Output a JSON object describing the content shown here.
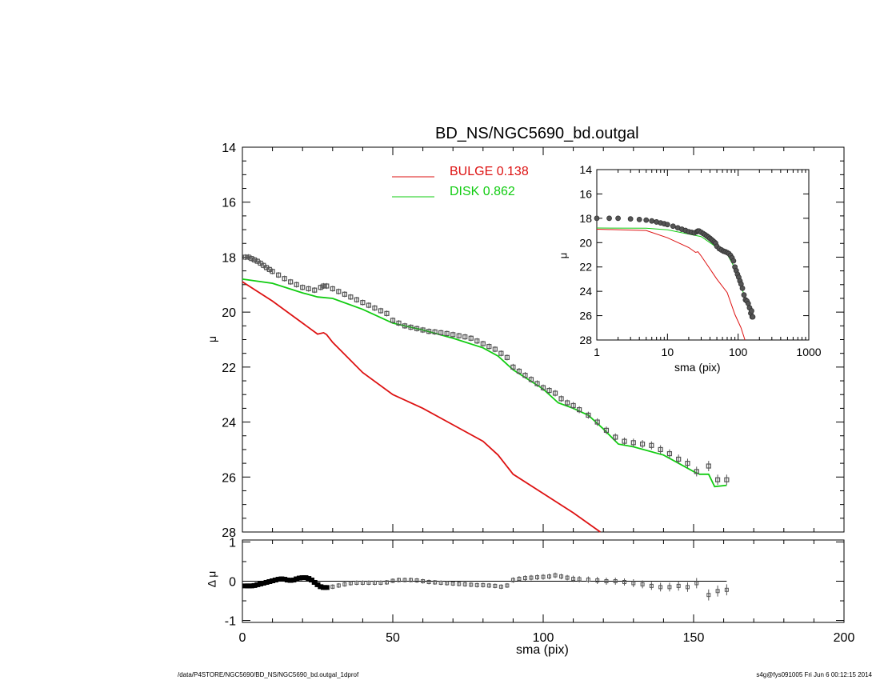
{
  "title": "BD_NS/NGC5690_bd.outgal",
  "footer_left": "/data/P4STORE/NGC5690/BD_NS/NGC5690_bd.outgal_1dprof",
  "footer_right": "s4g@fys091005  Fri Jun  6 00:12:15 2014",
  "colors": {
    "bulge": "#dd1111",
    "disk": "#11cc11",
    "data": "#555555",
    "axis": "#000000"
  },
  "legend": [
    {
      "label": "BULGE  0.138",
      "color": "#dd1111"
    },
    {
      "label": "DISK  0.862",
      "color": "#11cc11"
    }
  ],
  "chart_data": [
    {
      "id": "main",
      "type": "line",
      "xlabel": "",
      "ylabel": "μ",
      "xlim": [
        0,
        200
      ],
      "ylim": [
        28,
        14
      ],
      "xticks": [
        0,
        50,
        100,
        150,
        200
      ],
      "yticks": [
        14,
        16,
        18,
        20,
        22,
        24,
        26,
        28
      ],
      "series": [
        {
          "name": "BULGE",
          "color": "#dd1111",
          "x": [
            0,
            10,
            20,
            25,
            27,
            28,
            30,
            40,
            50,
            60,
            70,
            80,
            85,
            90,
            100,
            110,
            119
          ],
          "y": [
            18.9,
            19.6,
            20.4,
            20.8,
            20.75,
            20.82,
            21.1,
            22.2,
            23.0,
            23.5,
            24.1,
            24.7,
            25.2,
            25.9,
            26.6,
            27.3,
            28.0
          ]
        },
        {
          "name": "DISK",
          "color": "#11cc11",
          "x": [
            0,
            10,
            20,
            25,
            30,
            40,
            50,
            60,
            70,
            80,
            85,
            90,
            100,
            105,
            110,
            115,
            120,
            125,
            130,
            140,
            145,
            150,
            152,
            155,
            157,
            161
          ],
          "y": [
            18.8,
            18.95,
            19.3,
            19.45,
            19.5,
            19.9,
            20.4,
            20.65,
            20.95,
            21.3,
            21.6,
            22.1,
            22.8,
            23.3,
            23.5,
            23.75,
            24.25,
            24.8,
            24.9,
            25.2,
            25.5,
            25.8,
            25.9,
            25.9,
            26.35,
            26.3
          ]
        }
      ],
      "points": {
        "name": "data",
        "color": "#555555",
        "x": [
          1,
          2,
          3,
          4,
          5,
          6,
          7,
          8,
          9,
          10,
          12,
          14,
          16,
          18,
          20,
          22,
          24,
          26,
          27,
          28,
          30,
          32,
          34,
          36,
          38,
          40,
          42,
          44,
          46,
          48,
          50,
          52,
          54,
          56,
          58,
          60,
          62,
          64,
          66,
          68,
          70,
          72,
          74,
          76,
          78,
          80,
          82,
          84,
          86,
          88,
          90,
          92,
          94,
          96,
          98,
          100,
          102,
          104,
          106,
          108,
          110,
          112,
          115,
          118,
          121,
          124,
          127,
          130,
          133,
          136,
          139,
          142,
          145,
          148,
          151,
          155,
          158,
          161
        ],
        "y": [
          18.0,
          18.0,
          18.05,
          18.1,
          18.15,
          18.22,
          18.3,
          18.38,
          18.45,
          18.52,
          18.65,
          18.78,
          18.9,
          19.0,
          19.1,
          19.15,
          19.2,
          19.1,
          19.05,
          19.05,
          19.15,
          19.25,
          19.35,
          19.45,
          19.55,
          19.65,
          19.75,
          19.85,
          19.95,
          20.05,
          20.3,
          20.4,
          20.5,
          20.55,
          20.6,
          20.65,
          20.7,
          20.72,
          20.75,
          20.78,
          20.82,
          20.86,
          20.9,
          20.95,
          21.05,
          21.15,
          21.25,
          21.35,
          21.5,
          21.65,
          22.0,
          22.15,
          22.3,
          22.45,
          22.6,
          22.75,
          22.85,
          22.95,
          23.15,
          23.3,
          23.4,
          23.55,
          23.75,
          24.0,
          24.3,
          24.55,
          24.7,
          24.75,
          24.8,
          24.85,
          25.0,
          25.15,
          25.35,
          25.5,
          25.8,
          25.6,
          26.1,
          26.1
        ],
        "err": [
          0.02,
          0.02,
          0.02,
          0.02,
          0.02,
          0.02,
          0.02,
          0.02,
          0.02,
          0.02,
          0.02,
          0.02,
          0.02,
          0.02,
          0.02,
          0.02,
          0.02,
          0.02,
          0.02,
          0.02,
          0.02,
          0.02,
          0.02,
          0.02,
          0.02,
          0.02,
          0.02,
          0.02,
          0.02,
          0.02,
          0.02,
          0.02,
          0.02,
          0.02,
          0.02,
          0.02,
          0.02,
          0.02,
          0.02,
          0.02,
          0.02,
          0.02,
          0.02,
          0.02,
          0.02,
          0.02,
          0.02,
          0.02,
          0.02,
          0.02,
          0.03,
          0.03,
          0.03,
          0.03,
          0.03,
          0.03,
          0.03,
          0.03,
          0.03,
          0.03,
          0.04,
          0.04,
          0.04,
          0.05,
          0.05,
          0.05,
          0.05,
          0.06,
          0.06,
          0.06,
          0.07,
          0.07,
          0.08,
          0.08,
          0.09,
          0.1,
          0.1,
          0.1
        ]
      }
    },
    {
      "id": "residual",
      "type": "scatter",
      "xlabel": "sma (pix)",
      "ylabel": "Δ μ",
      "xlim": [
        0,
        200
      ],
      "ylim": [
        -1.05,
        1.05
      ],
      "xticks": [
        0,
        50,
        100,
        150,
        200
      ],
      "yticks": [
        -1,
        0,
        1
      ],
      "zero_line_x": [
        0,
        161
      ],
      "points": {
        "x": [
          1,
          2,
          3,
          4,
          5,
          6,
          7,
          8,
          9,
          10,
          11,
          12,
          13,
          14,
          15,
          16,
          17,
          18,
          19,
          20,
          21,
          22,
          23,
          24,
          25,
          26,
          27,
          28,
          30,
          32,
          34,
          36,
          38,
          40,
          42,
          44,
          46,
          48,
          50,
          52,
          54,
          56,
          58,
          60,
          62,
          64,
          66,
          68,
          70,
          72,
          74,
          76,
          78,
          80,
          82,
          84,
          86,
          88,
          90,
          92,
          94,
          96,
          98,
          100,
          102,
          104,
          106,
          108,
          110,
          112,
          115,
          118,
          121,
          124,
          127,
          130,
          133,
          136,
          139,
          142,
          145,
          148,
          151,
          155,
          158,
          161
        ],
        "y": [
          -0.12,
          -0.12,
          -0.12,
          -0.11,
          -0.09,
          -0.07,
          -0.05,
          -0.03,
          -0.01,
          0.01,
          0.03,
          0.05,
          0.06,
          0.05,
          0.03,
          0.02,
          0.03,
          0.06,
          0.08,
          0.09,
          0.09,
          0.07,
          0.03,
          -0.03,
          -0.09,
          -0.14,
          -0.16,
          -0.16,
          -0.14,
          -0.11,
          -0.08,
          -0.05,
          -0.04,
          -0.04,
          -0.04,
          -0.04,
          -0.04,
          -0.03,
          0.01,
          0.03,
          0.03,
          0.03,
          0.02,
          0.0,
          -0.02,
          -0.03,
          -0.04,
          -0.05,
          -0.06,
          -0.07,
          -0.08,
          -0.09,
          -0.1,
          -0.1,
          -0.11,
          -0.12,
          -0.14,
          -0.11,
          0.03,
          0.06,
          0.08,
          0.09,
          0.1,
          0.11,
          0.12,
          0.15,
          0.12,
          0.09,
          0.06,
          0.05,
          0.04,
          0.02,
          0.0,
          0.0,
          -0.02,
          -0.05,
          -0.08,
          -0.12,
          -0.15,
          -0.15,
          -0.12,
          -0.15,
          -0.05,
          -0.35,
          -0.25,
          -0.22
        ],
        "err": [
          0.02,
          0.02,
          0.02,
          0.02,
          0.02,
          0.02,
          0.02,
          0.02,
          0.02,
          0.02,
          0.02,
          0.02,
          0.02,
          0.02,
          0.02,
          0.02,
          0.02,
          0.02,
          0.02,
          0.02,
          0.02,
          0.02,
          0.02,
          0.02,
          0.02,
          0.02,
          0.02,
          0.02,
          0.02,
          0.02,
          0.02,
          0.02,
          0.02,
          0.02,
          0.02,
          0.02,
          0.02,
          0.02,
          0.02,
          0.02,
          0.02,
          0.02,
          0.02,
          0.02,
          0.02,
          0.02,
          0.02,
          0.02,
          0.02,
          0.02,
          0.02,
          0.02,
          0.02,
          0.02,
          0.02,
          0.02,
          0.02,
          0.02,
          0.03,
          0.03,
          0.03,
          0.03,
          0.03,
          0.03,
          0.03,
          0.03,
          0.03,
          0.03,
          0.04,
          0.04,
          0.04,
          0.05,
          0.05,
          0.05,
          0.05,
          0.06,
          0.06,
          0.06,
          0.07,
          0.07,
          0.08,
          0.08,
          0.09,
          0.1,
          0.1,
          0.1
        ]
      }
    },
    {
      "id": "inset",
      "type": "line",
      "xscale": "log",
      "xlabel": "sma (pix)",
      "ylabel": "μ",
      "xlim": [
        1,
        1000
      ],
      "ylim": [
        28,
        14
      ],
      "xticks": [
        1,
        10,
        100,
        1000
      ],
      "xticklabels": [
        "1",
        "10",
        "100",
        "1000"
      ],
      "yticks": [
        14,
        16,
        18,
        20,
        22,
        24,
        26,
        28
      ],
      "series": [
        {
          "name": "BULGE",
          "color": "#dd1111",
          "x": [
            1,
            5,
            10,
            20,
            25,
            27,
            30,
            50,
            70,
            90,
            110,
            125
          ],
          "y": [
            18.9,
            19.0,
            19.6,
            20.4,
            20.8,
            20.75,
            21.1,
            23.0,
            24.1,
            25.9,
            27.0,
            28.0
          ]
        },
        {
          "name": "DISK",
          "color": "#11cc11",
          "x": [
            1,
            5,
            10,
            20,
            30,
            50,
            70,
            90,
            110,
            130,
            161
          ],
          "y": [
            18.8,
            18.82,
            18.95,
            19.3,
            19.5,
            20.4,
            20.95,
            22.1,
            23.5,
            24.9,
            26.3
          ]
        }
      ],
      "points": {
        "x": [
          1,
          1.5,
          2,
          3,
          4,
          5,
          6,
          7,
          8,
          9,
          10,
          12,
          14,
          16,
          18,
          20,
          22,
          24,
          26,
          27,
          28,
          30,
          32,
          34,
          36,
          38,
          40,
          42,
          44,
          46,
          48,
          50,
          54,
          58,
          62,
          66,
          70,
          74,
          78,
          82,
          86,
          90,
          94,
          98,
          102,
          106,
          110,
          115,
          121,
          127,
          133,
          139,
          145,
          151,
          155,
          158,
          161
        ],
        "y": [
          18.0,
          18.0,
          18.0,
          18.05,
          18.1,
          18.15,
          18.22,
          18.3,
          18.38,
          18.45,
          18.52,
          18.65,
          18.78,
          18.9,
          19.0,
          19.1,
          19.15,
          19.2,
          19.1,
          19.05,
          19.05,
          19.15,
          19.25,
          19.35,
          19.45,
          19.55,
          19.65,
          19.75,
          19.85,
          19.95,
          20.05,
          20.3,
          20.5,
          20.6,
          20.7,
          20.75,
          20.82,
          20.9,
          21.05,
          21.25,
          21.5,
          22.0,
          22.3,
          22.6,
          22.85,
          23.15,
          23.4,
          23.75,
          24.3,
          24.7,
          24.8,
          25.0,
          25.35,
          25.8,
          25.6,
          26.1,
          26.1
        ]
      }
    }
  ]
}
